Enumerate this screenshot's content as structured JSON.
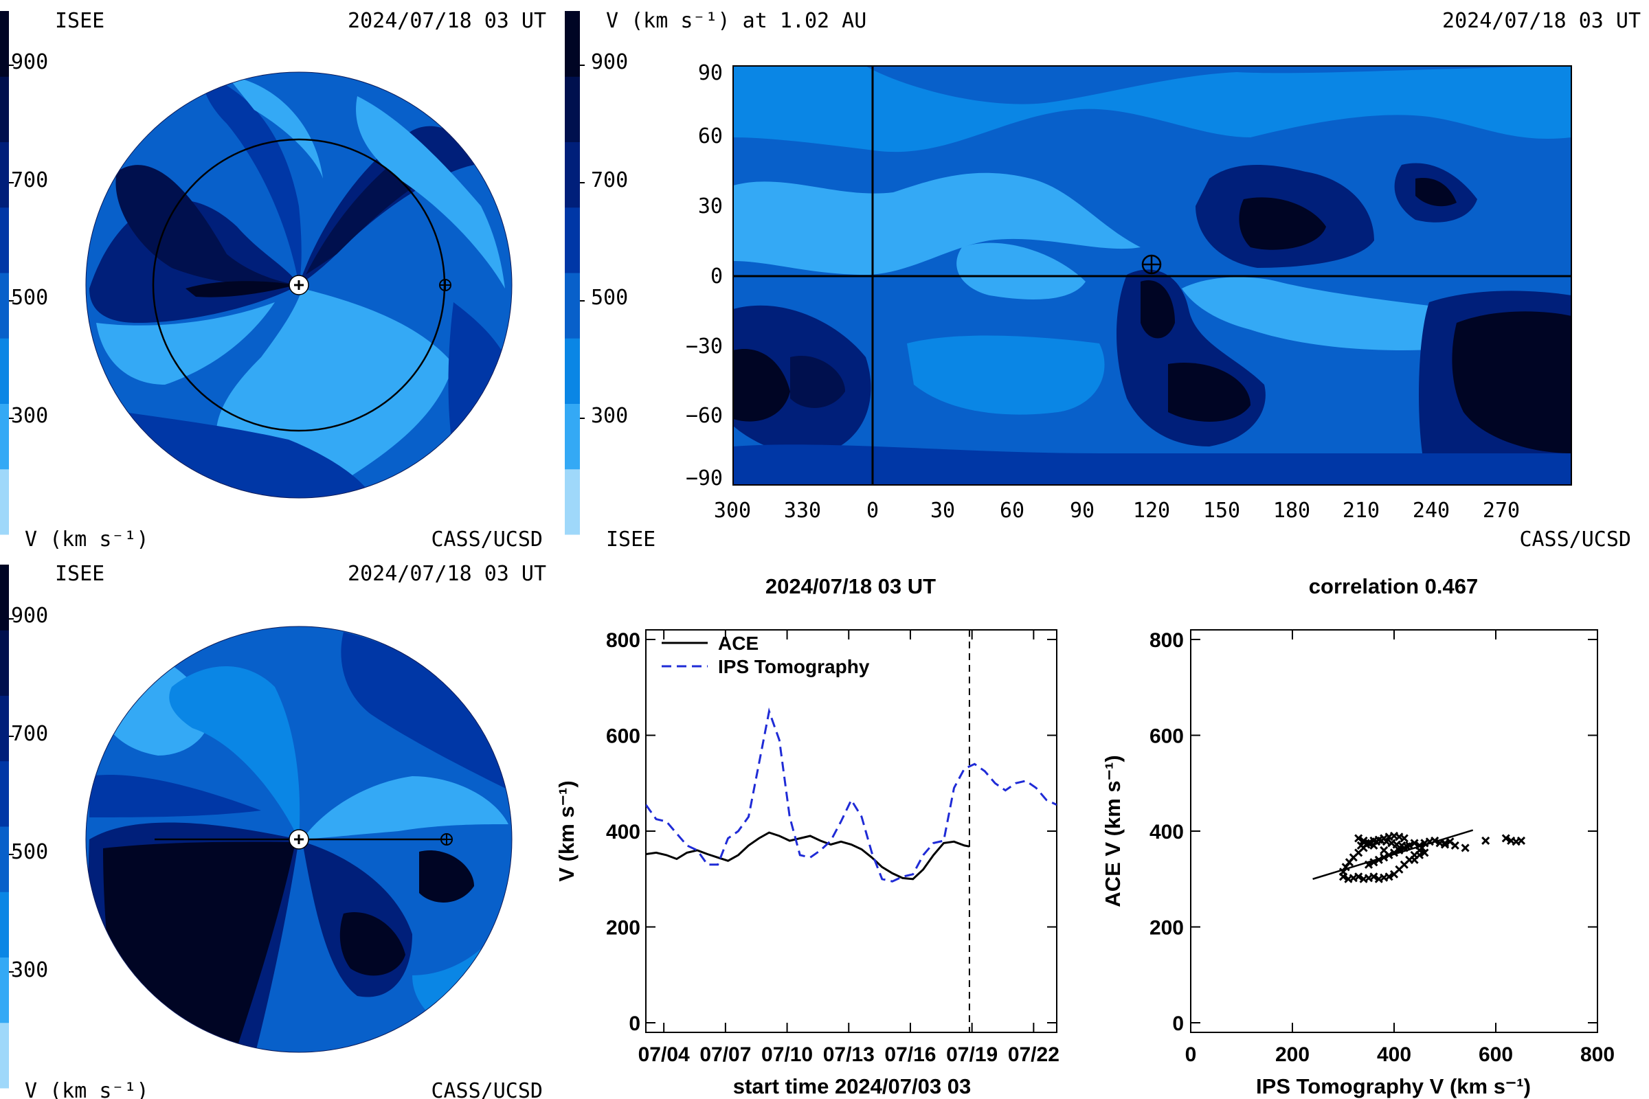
{
  "colors": {
    "scale": [
      "#9fd8fa",
      "#34a9f5",
      "#0a86e5",
      "#0860ca",
      "#0037a6",
      "#001f7a",
      "#00104e",
      "#000524"
    ],
    "line": "#000000",
    "ips_line": "#1f2bd6"
  },
  "panel_tl": {
    "left_label": "ISEE",
    "timestamp": "2024/07/18 03 UT",
    "colorbar_ticks": [
      "900",
      "700",
      "500",
      "300"
    ],
    "unit_label": "V (km s⁻¹)",
    "right_label": "CASS/UCSD"
  },
  "panel_bl": {
    "left_label": "ISEE",
    "timestamp": "2024/07/18 03 UT",
    "colorbar_ticks": [
      "900",
      "700",
      "500",
      "300"
    ],
    "unit_label": "V (km s⁻¹)",
    "right_label": "CASS/UCSD"
  },
  "panel_map": {
    "title_left": "V (km s⁻¹) at 1.02 AU",
    "timestamp": "2024/07/18 03 UT",
    "colorbar_ticks": [
      "900",
      "700",
      "500",
      "300"
    ],
    "bottom_left": "ISEE",
    "bottom_right": "CASS/UCSD",
    "x_ticks": [
      "300",
      "330",
      "0",
      "30",
      "60",
      "90",
      "120",
      "150",
      "180",
      "210",
      "240",
      "270"
    ],
    "y_ticks": [
      "90",
      "60",
      "30",
      "0",
      "−30",
      "−60",
      "−90"
    ]
  },
  "chart_data": [
    {
      "type": "line",
      "title": "2024/07/18 03 UT",
      "xlabel": "start time 2024/07/03 03",
      "ylabel": "V (km s⁻¹)",
      "ylim": [
        0,
        800
      ],
      "xlim": [
        0.0,
        20.0
      ],
      "x_unit": "days since 2024/07/03 03",
      "x_tick_labels": [
        "07/04",
        "07/07",
        "07/10",
        "07/13",
        "07/16",
        "07/19",
        "07/22"
      ],
      "x_tick_positions": [
        0.875,
        3.875,
        6.875,
        9.875,
        12.875,
        15.875,
        18.875
      ],
      "y_ticks": [
        0,
        200,
        400,
        600,
        800
      ],
      "legend": "top-left",
      "current_time_marker": 15.75,
      "series": [
        {
          "name": "ACE",
          "style": "solid",
          "x": [
            0.0,
            0.5,
            1.0,
            1.5,
            2.0,
            2.5,
            3.0,
            3.5,
            4.0,
            4.5,
            5.0,
            5.5,
            6.0,
            6.5,
            7.0,
            7.5,
            8.0,
            8.5,
            9.0,
            9.5,
            10.0,
            10.5,
            11.0,
            11.5,
            12.0,
            12.5,
            13.0,
            13.5,
            14.0,
            14.5,
            15.0,
            15.5,
            15.75
          ],
          "y": [
            352,
            355,
            350,
            342,
            355,
            360,
            352,
            345,
            338,
            350,
            370,
            385,
            397,
            390,
            380,
            385,
            390,
            380,
            372,
            378,
            372,
            362,
            345,
            325,
            312,
            302,
            300,
            320,
            350,
            375,
            378,
            370,
            368
          ]
        },
        {
          "name": "IPS Tomography",
          "style": "dashed",
          "x": [
            0.0,
            0.5,
            1.0,
            1.5,
            2.0,
            2.5,
            3.0,
            3.5,
            4.0,
            4.5,
            5.0,
            5.5,
            6.0,
            6.5,
            7.0,
            7.5,
            8.0,
            8.5,
            9.0,
            9.5,
            10.0,
            10.5,
            11.0,
            11.5,
            12.0,
            12.5,
            13.0,
            13.5,
            14.0,
            14.5,
            15.0,
            15.5,
            16.0,
            16.5,
            17.0,
            17.5,
            18.0,
            18.5,
            19.0,
            19.5,
            20.0
          ],
          "y": [
            455,
            425,
            420,
            395,
            370,
            360,
            330,
            330,
            385,
            400,
            430,
            540,
            650,
            590,
            430,
            350,
            345,
            360,
            380,
            420,
            465,
            430,
            355,
            300,
            295,
            305,
            310,
            350,
            375,
            380,
            490,
            530,
            540,
            525,
            500,
            485,
            500,
            505,
            490,
            465,
            455
          ]
        }
      ]
    },
    {
      "type": "scatter",
      "title": "correlation 0.467",
      "xlabel": "IPS Tomography V (km s⁻¹)",
      "ylabel": "ACE V (km s⁻¹)",
      "xlim": [
        0,
        800
      ],
      "ylim": [
        0,
        800
      ],
      "x_ticks": [
        0,
        200,
        400,
        600,
        800
      ],
      "y_ticks": [
        0,
        200,
        400,
        600,
        800
      ],
      "fit_line": {
        "x": [
          240,
          555
        ],
        "y": [
          300,
          402
        ]
      },
      "points": {
        "x": [
          300,
          310,
          320,
          330,
          340,
          350,
          360,
          370,
          380,
          390,
          400,
          410,
          420,
          430,
          440,
          450,
          300,
          305,
          312,
          320,
          330,
          340,
          350,
          360,
          370,
          380,
          390,
          400,
          410,
          420,
          335,
          345,
          355,
          365,
          375,
          385,
          395,
          405,
          415,
          425,
          350,
          360,
          370,
          380,
          390,
          400,
          410,
          420,
          430,
          440,
          450,
          460,
          470,
          480,
          490,
          500,
          520,
          540,
          580,
          620,
          630,
          640,
          650,
          450,
          455,
          460,
          330,
          340,
          350,
          360,
          380,
          440,
          460,
          500,
          510
        ],
        "y": [
          305,
          300,
          302,
          305,
          300,
          302,
          305,
          300,
          303,
          305,
          310,
          320,
          330,
          340,
          350,
          360,
          315,
          325,
          335,
          345,
          355,
          365,
          375,
          380,
          382,
          385,
          388,
          390,
          388,
          385,
          370,
          372,
          375,
          378,
          380,
          378,
          375,
          372,
          370,
          368,
          330,
          335,
          340,
          345,
          350,
          355,
          360,
          365,
          370,
          375,
          370,
          375,
          378,
          380,
          375,
          372,
          370,
          365,
          380,
          385,
          380,
          378,
          380,
          350,
          365,
          375,
          385,
          380,
          375,
          370,
          360,
          340,
          355,
          375,
          378
        ]
      }
    }
  ]
}
